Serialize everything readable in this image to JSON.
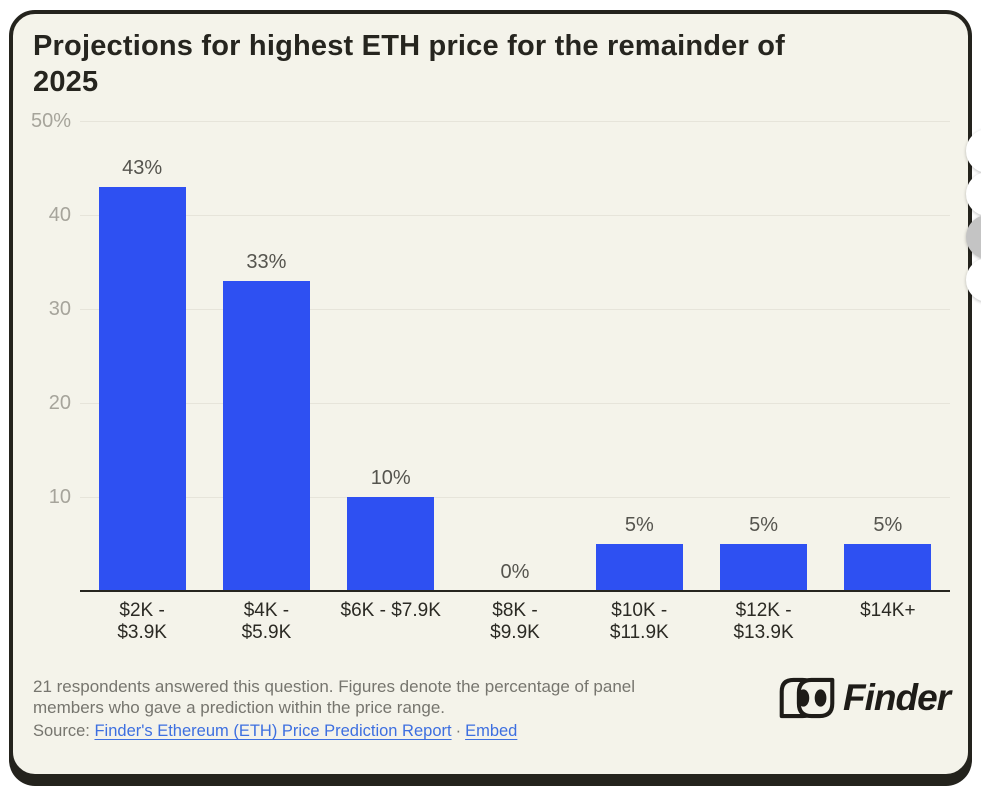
{
  "title": "Projections for highest ETH price for the remainder of\n2025",
  "chart_data": {
    "type": "bar",
    "title": "Projections for highest ETH price for the remainder of 2025",
    "categories": [
      "$2K -\n$3.9K",
      "$4K -\n$5.9K",
      "$6K - $7.9K",
      "$8K -\n$9.9K",
      "$10K -\n$11.9K",
      "$12K -\n$13.9K",
      "$14K+"
    ],
    "values": [
      43,
      33,
      10,
      0,
      5,
      5,
      5
    ],
    "value_labels": [
      "43%",
      "33%",
      "10%",
      "0%",
      "5%",
      "5%",
      "5%"
    ],
    "yticks": [
      50,
      40,
      30,
      20,
      10
    ],
    "ytick_labels": [
      "50%",
      "40",
      "30",
      "20",
      "10"
    ],
    "ylim": [
      0,
      50
    ],
    "xlabel": "",
    "ylabel": "",
    "grid": "horizontal",
    "legend": "none",
    "bar_color": "#2e50f2"
  },
  "footer": {
    "note": "21 respondents answered this question. Figures denote the percentage of panel\nmembers who gave a prediction within the price range.",
    "source_label": "Source:",
    "source_link": "Finder's Ethereum (ETH) Price Prediction Report",
    "separator": "·",
    "embed_link": "Embed"
  },
  "logo": {
    "text": "Finder"
  },
  "colors": {
    "card_background": "#f4f3ea",
    "card_border": "#24231d",
    "bar": "#2e50f2",
    "link": "#3d6fe0",
    "muted_text": "#76756e",
    "axis_text": "#a6a49b",
    "title_text": "#26251f"
  }
}
